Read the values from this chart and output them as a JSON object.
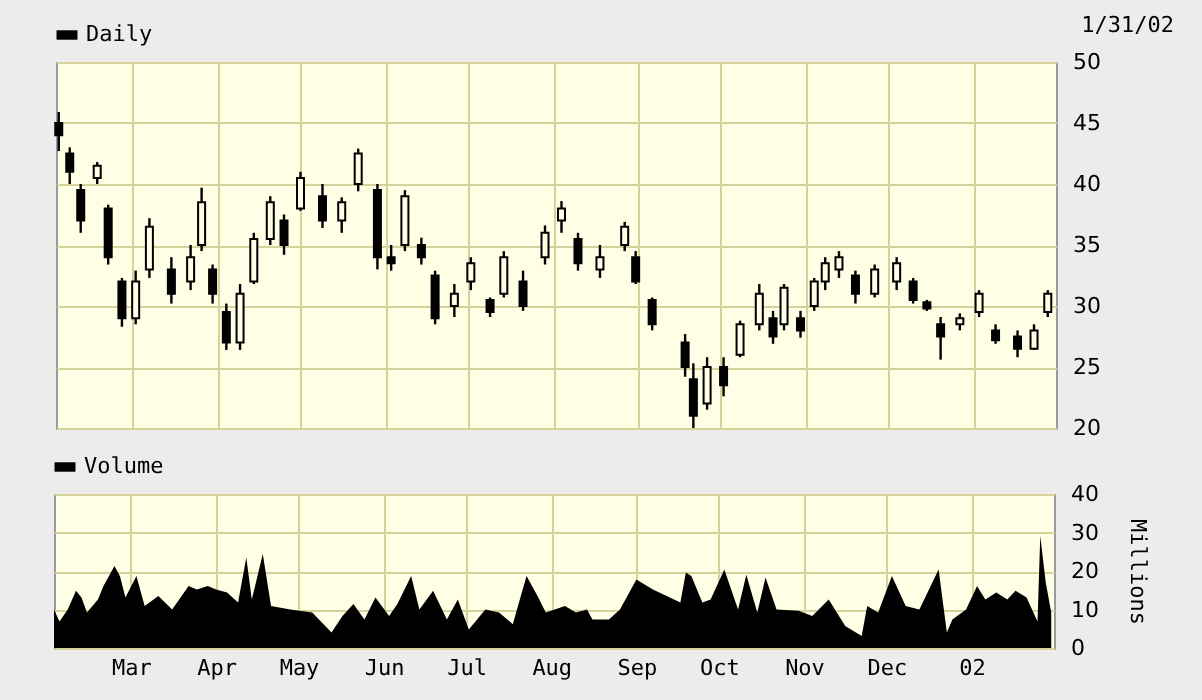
{
  "chart_data": [
    {
      "type": "candlestick",
      "legend": "top left",
      "grid": true,
      "tick_labels": "y",
      "xlim": [
        "2001-02-01",
        "2002-01-31"
      ],
      "xticks": [
        {
          "value": "2001-03-01",
          "label": null
        },
        {
          "value": "2001-04-01",
          "label": null
        },
        {
          "value": "2001-05-01",
          "label": null
        },
        {
          "value": "2001-06-01",
          "label": null
        },
        {
          "value": "2001-07-01",
          "label": null
        },
        {
          "value": "2001-08-01",
          "label": null
        },
        {
          "value": "2001-09-01",
          "label": null
        },
        {
          "value": "2001-10-01",
          "label": null
        },
        {
          "value": "2001-11-01",
          "label": null
        },
        {
          "value": "2001-12-01",
          "label": null
        },
        {
          "value": "2002-01-01",
          "label": null
        }
      ],
      "ylim": [
        20,
        50
      ],
      "yticks": [
        20,
        25,
        30,
        35,
        40,
        45,
        50
      ],
      "annotations": [
        "1/31/02"
      ],
      "series": [
        {
          "name": "Daily",
          "color": "#000000",
          "x": [
            "2001-02-02",
            "2001-02-06",
            "2001-02-10",
            "2001-02-16",
            "2001-02-20",
            "2001-02-25",
            "2001-03-02",
            "2001-03-07",
            "2001-03-15",
            "2001-03-22",
            "2001-03-26",
            "2001-03-30",
            "2001-04-04",
            "2001-04-09",
            "2001-04-14",
            "2001-04-20",
            "2001-04-25",
            "2001-05-01",
            "2001-05-09",
            "2001-05-16",
            "2001-05-22",
            "2001-05-29",
            "2001-06-03",
            "2001-06-08",
            "2001-06-14",
            "2001-06-19",
            "2001-06-26",
            "2001-07-02",
            "2001-07-09",
            "2001-07-14",
            "2001-07-21",
            "2001-07-29",
            "2001-08-04",
            "2001-08-10",
            "2001-08-18",
            "2001-08-27",
            "2001-08-31",
            "2001-09-06",
            "2001-09-18",
            "2001-09-21",
            "2001-09-26",
            "2001-10-02",
            "2001-10-08",
            "2001-10-15",
            "2001-10-20",
            "2001-10-24",
            "2001-10-30",
            "2001-11-04",
            "2001-11-08",
            "2001-11-13",
            "2001-11-19",
            "2001-11-26",
            "2001-12-04",
            "2001-12-10",
            "2001-12-15",
            "2001-12-20",
            "2001-12-27",
            "2002-01-03",
            "2002-01-09",
            "2002-01-17",
            "2002-01-23",
            "2002-01-28"
          ],
          "ohlc": [
            [
              45,
              45.9,
              42.7,
              44
            ],
            [
              42.5,
              43,
              40,
              41
            ],
            [
              39.5,
              40,
              36,
              37
            ],
            [
              40.5,
              41.8,
              40,
              41.5
            ],
            [
              38,
              38.3,
              33.4,
              34
            ],
            [
              32,
              32.3,
              28.3,
              29
            ],
            [
              29,
              32.9,
              28.5,
              32
            ],
            [
              33,
              37.2,
              32.3,
              36.5
            ],
            [
              33,
              34,
              30.2,
              31
            ],
            [
              32,
              35,
              31.3,
              34
            ],
            [
              35,
              39.7,
              34.5,
              38.5
            ],
            [
              33,
              33.4,
              30.2,
              31
            ],
            [
              29.5,
              30.2,
              26.4,
              27
            ],
            [
              27,
              31.8,
              26.4,
              31
            ],
            [
              32,
              36,
              31.8,
              35.5
            ],
            [
              35.5,
              39,
              35,
              38.5
            ],
            [
              37,
              37.5,
              34.2,
              35
            ],
            [
              38,
              41,
              37.8,
              40.5
            ],
            [
              39,
              40,
              36.4,
              37
            ],
            [
              37,
              38.9,
              36,
              38.5
            ],
            [
              40,
              42.9,
              39.4,
              42.5
            ],
            [
              39.5,
              40,
              33,
              34
            ],
            [
              34,
              35,
              32.9,
              33.5
            ],
            [
              35,
              39.5,
              34.5,
              39
            ],
            [
              35,
              35.6,
              33.4,
              34
            ],
            [
              32.5,
              32.9,
              28.5,
              29
            ],
            [
              30,
              31.8,
              29.1,
              31
            ],
            [
              32,
              34,
              31.3,
              33.5
            ],
            [
              30.5,
              30.7,
              29.1,
              29.5
            ],
            [
              31,
              34.5,
              30.7,
              34
            ],
            [
              32,
              32.9,
              29.6,
              30
            ],
            [
              34,
              36.6,
              33.4,
              36
            ],
            [
              37,
              38.6,
              36,
              38
            ],
            [
              35.5,
              36,
              32.9,
              33.5
            ],
            [
              33,
              35,
              32.3,
              34
            ],
            [
              35,
              36.9,
              34.5,
              36.5
            ],
            [
              34,
              34.5,
              31.8,
              32
            ],
            [
              30.5,
              30.7,
              28,
              28.5
            ],
            [
              27,
              27.7,
              24.2,
              25
            ],
            [
              24,
              25.3,
              20,
              21
            ],
            [
              22,
              25.8,
              21.5,
              25
            ],
            [
              25,
              25.8,
              22.6,
              23.5
            ],
            [
              26,
              28.8,
              25.8,
              28.5
            ],
            [
              28.5,
              31.8,
              28,
              31
            ],
            [
              29,
              29.6,
              26.9,
              27.5
            ],
            [
              28.5,
              31.8,
              28,
              31.5
            ],
            [
              29,
              29.6,
              27.4,
              28
            ],
            [
              30,
              32.3,
              29.6,
              32
            ],
            [
              32,
              34,
              31.3,
              33.5
            ],
            [
              33,
              34.5,
              32.3,
              34
            ],
            [
              32.5,
              32.9,
              30.2,
              31
            ],
            [
              31,
              33.4,
              30.7,
              33
            ],
            [
              32,
              34,
              31.3,
              33.5
            ],
            [
              32,
              32.3,
              30.2,
              30.5
            ],
            [
              30.3,
              30.5,
              29.6,
              29.8
            ],
            [
              28.5,
              29.1,
              25.6,
              27.5
            ],
            [
              28.5,
              29.4,
              28,
              29
            ],
            [
              29.5,
              31.3,
              29.1,
              31
            ],
            [
              28,
              28.5,
              26.9,
              27.2
            ],
            [
              27.5,
              28,
              25.8,
              26.5
            ],
            [
              26.5,
              28.5,
              26.4,
              28
            ],
            [
              29.5,
              31.3,
              29.1,
              31
            ]
          ]
        }
      ]
    },
    {
      "type": "area",
      "legend": "top left",
      "grid": true,
      "ylabel": "Millions",
      "xlim": [
        "2001-02-01",
        "2002-01-31"
      ],
      "xticks": [
        {
          "value": "2001-03-01",
          "label": "Mar"
        },
        {
          "value": "2001-04-01",
          "label": "Apr"
        },
        {
          "value": "2001-05-01",
          "label": "May"
        },
        {
          "value": "2001-06-01",
          "label": "Jun"
        },
        {
          "value": "2001-07-01",
          "label": "Jul"
        },
        {
          "value": "2001-08-01",
          "label": "Aug"
        },
        {
          "value": "2001-09-01",
          "label": "Sep"
        },
        {
          "value": "2001-10-01",
          "label": "Oct"
        },
        {
          "value": "2001-11-01",
          "label": "Nov"
        },
        {
          "value": "2001-12-01",
          "label": "Dec"
        },
        {
          "value": "2002-01-01",
          "label": "02"
        }
      ],
      "ylim": [
        0,
        40
      ],
      "yticks": [
        0,
        10,
        20,
        30,
        40
      ],
      "series": [
        {
          "name": "Volume",
          "color": "#000000",
          "x": [
            "2001-02-01",
            "2001-02-03",
            "2001-02-06",
            "2001-02-09",
            "2001-02-11",
            "2001-02-13",
            "2001-02-17",
            "2001-02-19",
            "2001-02-23",
            "2001-02-25",
            "2001-02-27",
            "2001-03-03",
            "2001-03-06",
            "2001-03-11",
            "2001-03-16",
            "2001-03-22",
            "2001-03-25",
            "2001-03-29",
            "2001-04-01",
            "2001-04-05",
            "2001-04-09",
            "2001-04-12",
            "2001-04-14",
            "2001-04-18",
            "2001-04-21",
            "2001-04-28",
            "2001-05-06",
            "2001-05-13",
            "2001-05-17",
            "2001-05-21",
            "2001-05-25",
            "2001-05-29",
            "2001-06-03",
            "2001-06-06",
            "2001-06-11",
            "2001-06-14",
            "2001-06-19",
            "2001-06-24",
            "2001-06-28",
            "2001-07-02",
            "2001-07-08",
            "2001-07-13",
            "2001-07-18",
            "2001-07-23",
            "2001-07-27",
            "2001-07-30",
            "2001-08-06",
            "2001-08-10",
            "2001-08-14",
            "2001-08-16",
            "2001-08-22",
            "2001-08-26",
            "2001-09-01",
            "2001-09-07",
            "2001-09-17",
            "2001-09-19",
            "2001-09-21",
            "2001-09-25",
            "2001-09-28",
            "2001-10-03",
            "2001-10-08",
            "2001-10-11",
            "2001-10-15",
            "2001-10-18",
            "2001-10-22",
            "2001-10-30",
            "2001-11-04",
            "2001-11-10",
            "2001-11-16",
            "2001-11-22",
            "2001-11-24",
            "2001-11-28",
            "2001-12-03",
            "2001-12-08",
            "2001-12-13",
            "2001-12-20",
            "2001-12-23",
            "2001-12-25",
            "2001-12-30",
            "2002-01-03",
            "2002-01-06",
            "2002-01-10",
            "2002-01-14",
            "2002-01-17",
            "2002-01-21",
            "2002-01-25",
            "2002-01-26",
            "2002-01-28",
            "2002-01-30"
          ],
          "values": [
            10,
            6.9,
            10,
            14.9,
            13.1,
            9.2,
            12.6,
            16.1,
            21.3,
            18.7,
            13.1,
            18.7,
            10.9,
            13.5,
            10,
            16.1,
            15.2,
            16.1,
            15.2,
            14.4,
            11.8,
            23.5,
            12.6,
            24.4,
            10.9,
            10,
            9.2,
            4,
            8.3,
            11.4,
            7.4,
            13.1,
            8.3,
            11.4,
            18.7,
            10,
            14.9,
            7.4,
            12.6,
            4.8,
            10,
            9.2,
            6.2,
            18.7,
            13.5,
            9.2,
            10.9,
            9.2,
            10,
            7.4,
            7.4,
            10,
            17.8,
            15.2,
            11.8,
            19.6,
            18.7,
            11.8,
            12.6,
            20.4,
            10,
            19,
            9.2,
            18.3,
            10,
            9.7,
            8.3,
            12.6,
            5.7,
            3.1,
            10.9,
            9.2,
            18.7,
            10.9,
            10,
            20.4,
            4,
            7.4,
            10,
            16.1,
            12.6,
            14.4,
            12.6,
            14.9,
            13.1,
            6.9,
            29.1,
            17,
            9.2
          ]
        }
      ]
    }
  ]
}
